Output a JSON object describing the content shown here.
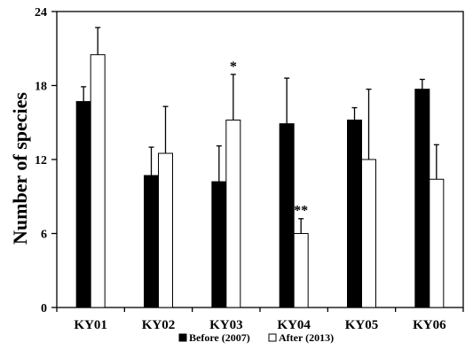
{
  "chart_data": {
    "type": "bar",
    "ylabel": "Number of species",
    "xlabel": "",
    "ylim": [
      0,
      24
    ],
    "yticks": [
      "0",
      "6",
      "12",
      "18",
      "24"
    ],
    "categories": [
      "KY01",
      "KY02",
      "KY03",
      "KY04",
      "KY05",
      "KY06"
    ],
    "series": [
      {
        "name": "Before (2007)",
        "color": "#000000",
        "values": [
          16.7,
          10.7,
          10.2,
          14.9,
          15.2,
          17.7
        ],
        "errors": [
          1.2,
          2.3,
          2.9,
          3.7,
          1.0,
          0.8
        ]
      },
      {
        "name": "After (2013)",
        "color": "#ffffff",
        "values": [
          20.5,
          12.5,
          15.2,
          6.0,
          12.0,
          10.4
        ],
        "errors": [
          2.2,
          3.8,
          3.7,
          1.2,
          5.7,
          2.8
        ]
      }
    ],
    "annotations": [
      {
        "text": "*",
        "category": "KY03",
        "series": 1,
        "y": 19.2
      },
      {
        "text": "**",
        "category": "KY04",
        "series": 1,
        "y": 7.5
      }
    ],
    "legend": "bottom-center",
    "grid": false
  }
}
